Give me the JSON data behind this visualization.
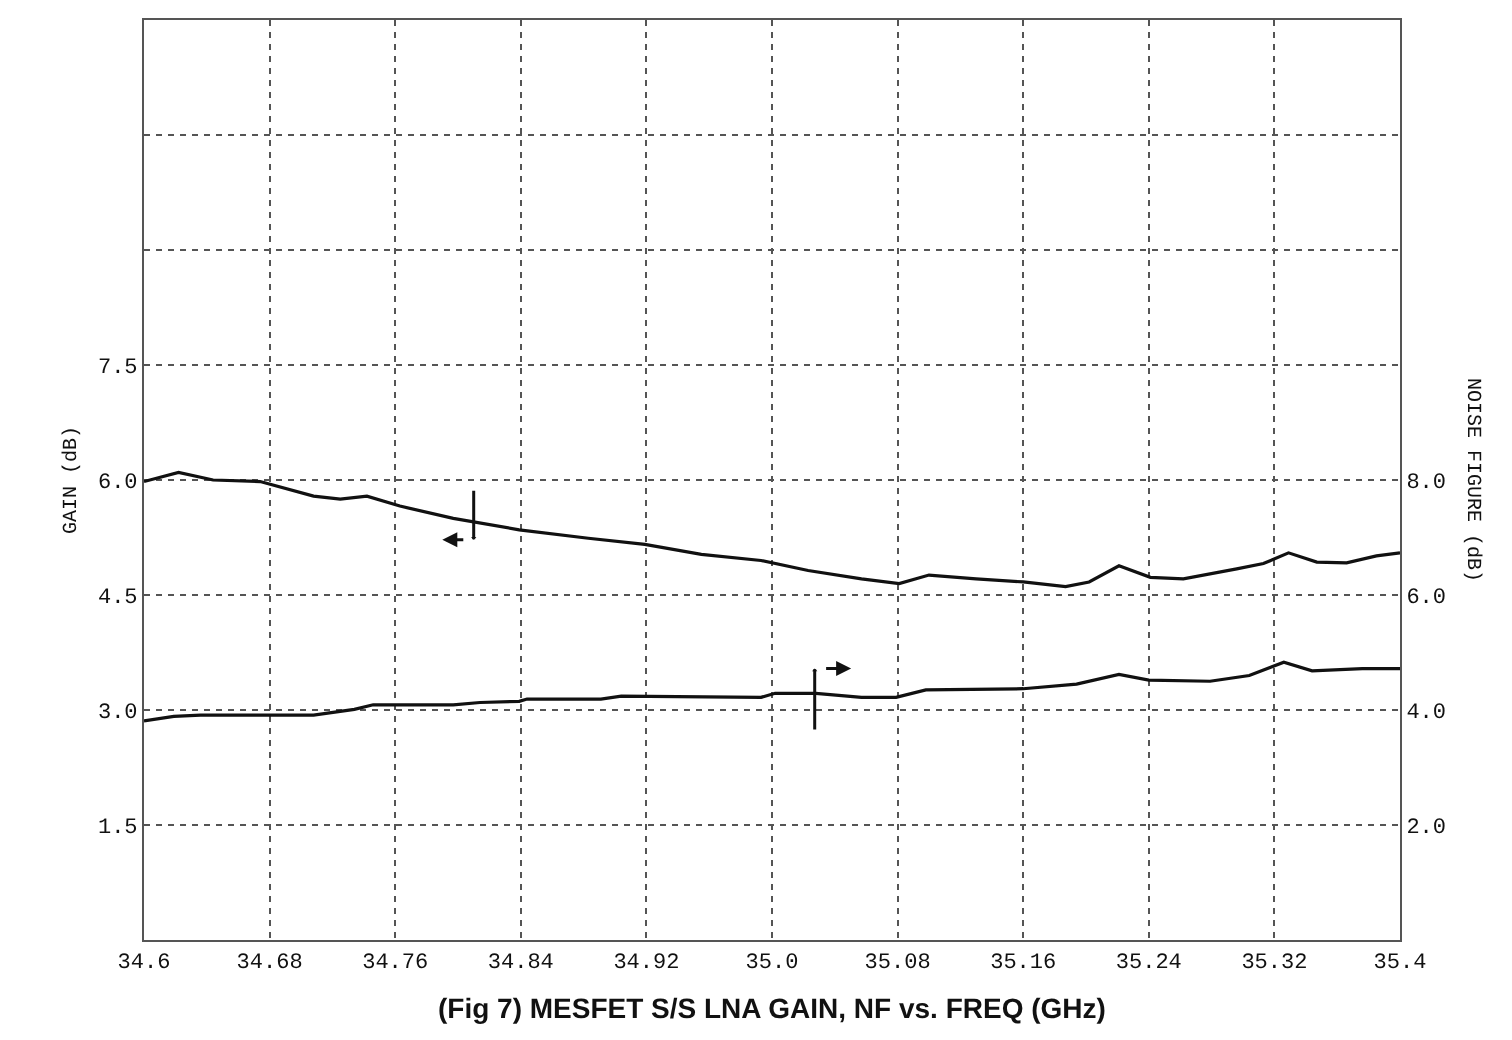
{
  "chart_data": {
    "type": "line",
    "title": "(Fig 7) MESFET S/S LNA GAIN, NF vs. FREQ (GHz)",
    "ylabel": "GAIN (dB)",
    "y2label": "NOISE FIGURE (dB)",
    "xlim": [
      34.6,
      35.4
    ],
    "xticks": [
      34.6,
      34.68,
      34.76,
      34.84,
      34.92,
      {
        "value": 35.0,
        "label": "35.0"
      },
      35.08,
      35.16,
      35.24,
      35.32,
      35.4
    ],
    "ylim": [
      0,
      12
    ],
    "yticks": [
      {
        "value": 1.5,
        "label": "1.5"
      },
      {
        "value": 3.0,
        "label": "3.0"
      },
      {
        "value": 4.5,
        "label": "4.5"
      },
      {
        "value": 6.0,
        "label": "6.0"
      },
      {
        "value": 7.5,
        "label": "7.5"
      },
      {
        "value": 9.0,
        "label": null
      },
      {
        "value": 10.5,
        "label": null
      },
      {
        "value": 12.0,
        "label": null
      }
    ],
    "y2lim": [
      0,
      16
    ],
    "y2ticks": [
      {
        "value": 2.0,
        "label": "2.0"
      },
      {
        "value": 4.0,
        "label": "4.0"
      },
      {
        "value": 6.0,
        "label": "6.0"
      },
      {
        "value": 8.0,
        "label": "8.0"
      }
    ],
    "grid": true,
    "marker": "none",
    "line_style": "solid",
    "series": [
      {
        "color": "#111111",
        "x": [
          34.6,
          34.622,
          34.644,
          34.674,
          34.708,
          34.725,
          34.742,
          34.763,
          34.797,
          34.839,
          34.883,
          34.919,
          34.955,
          34.993,
          35.023,
          35.057,
          35.081,
          35.1,
          35.13,
          35.16,
          35.187,
          35.202,
          35.221,
          35.241,
          35.262,
          35.296,
          35.313,
          35.329,
          35.347,
          35.366,
          35.385,
          35.4
        ],
        "values": [
          5.98,
          6.1,
          6.0,
          5.98,
          5.79,
          5.75,
          5.79,
          5.66,
          5.5,
          5.35,
          5.24,
          5.16,
          5.03,
          4.95,
          4.82,
          4.71,
          4.65,
          4.76,
          4.71,
          4.67,
          4.61,
          4.67,
          4.88,
          4.73,
          4.71,
          4.84,
          4.91,
          5.05,
          4.93,
          4.92,
          5.01,
          5.05
        ]
      },
      {
        "color": "#111111",
        "axis": "y2",
        "x": [
          34.6,
          34.619,
          34.636,
          34.708,
          34.734,
          34.746,
          34.797,
          34.814,
          34.839,
          34.844,
          34.891,
          34.904,
          34.993,
          35.002,
          35.028,
          35.057,
          35.079,
          35.098,
          35.16,
          35.194,
          35.221,
          35.24,
          35.279,
          35.304,
          35.326,
          35.344,
          35.376,
          35.4
        ],
        "values": [
          3.81,
          3.89,
          3.91,
          3.91,
          4.01,
          4.09,
          4.09,
          4.13,
          4.15,
          4.19,
          4.19,
          4.24,
          4.22,
          4.29,
          4.29,
          4.22,
          4.22,
          4.35,
          4.37,
          4.45,
          4.62,
          4.52,
          4.5,
          4.6,
          4.83,
          4.68,
          4.72,
          4.72
        ]
      }
    ]
  }
}
